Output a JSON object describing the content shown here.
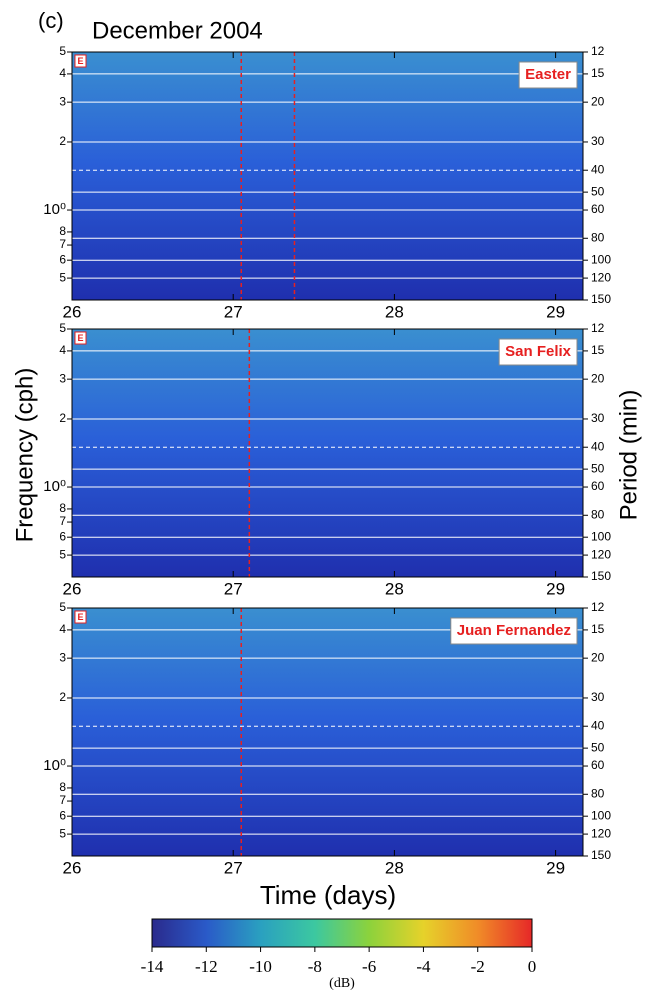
{
  "figure": {
    "label": "(c)",
    "title": "December 2004",
    "y_label": "Frequency  (cph)",
    "y2_label": "Period  (min)",
    "x_label": "Time  (days)"
  },
  "chart_data": [
    {
      "type": "spectrogram",
      "station": "Easter",
      "marker": "E",
      "log_scale": true,
      "xlim": [
        26,
        29.17
      ],
      "xticks": [
        26,
        27,
        28,
        29
      ],
      "ylim": [
        0.4,
        5
      ],
      "yticks": [
        5,
        4,
        3,
        2,
        {
          "value": 1,
          "label": "10⁰"
        },
        {
          "value": 0.8,
          "label": "8"
        },
        {
          "value": 0.7,
          "label": "7"
        },
        {
          "value": 0.6,
          "label": "6"
        },
        {
          "value": 0.5,
          "label": "5"
        }
      ],
      "y2lim": [
        150,
        12
      ],
      "y2ticks": [
        12,
        15,
        20,
        30,
        40,
        50,
        60,
        80,
        100,
        120,
        150
      ],
      "event_lines": [
        27.05,
        27.38
      ],
      "grid": true
    },
    {
      "type": "spectrogram",
      "station": "San Felix",
      "marker": "E",
      "log_scale": true,
      "xlim": [
        26,
        29.17
      ],
      "xticks": [
        26,
        27,
        28,
        29
      ],
      "ylim": [
        0.4,
        5
      ],
      "yticks": [
        5,
        4,
        3,
        2,
        {
          "value": 1,
          "label": "10⁰"
        },
        {
          "value": 0.8,
          "label": "8"
        },
        {
          "value": 0.7,
          "label": "7"
        },
        {
          "value": 0.6,
          "label": "6"
        },
        {
          "value": 0.5,
          "label": "5"
        }
      ],
      "y2lim": [
        150,
        12
      ],
      "y2ticks": [
        12,
        15,
        20,
        30,
        40,
        50,
        60,
        80,
        100,
        120,
        150
      ],
      "event_lines": [
        27.1
      ],
      "grid": true
    },
    {
      "type": "spectrogram",
      "station": "Juan Fernandez",
      "marker": "E",
      "log_scale": true,
      "xlim": [
        26,
        29.17
      ],
      "xticks": [
        26,
        27,
        28,
        29
      ],
      "ylim": [
        0.4,
        5
      ],
      "yticks": [
        5,
        4,
        3,
        2,
        {
          "value": 1,
          "label": "10⁰"
        },
        {
          "value": 0.8,
          "label": "8"
        },
        {
          "value": 0.7,
          "label": "7"
        },
        {
          "value": 0.6,
          "label": "6"
        },
        {
          "value": 0.5,
          "label": "5"
        }
      ],
      "y2lim": [
        150,
        12
      ],
      "y2ticks": [
        12,
        15,
        20,
        30,
        40,
        50,
        60,
        80,
        100,
        120,
        150
      ],
      "event_lines": [
        27.05
      ],
      "grid": true
    },
    {
      "type": "colorbar",
      "label": "(dB)",
      "clim": [
        -14,
        0
      ],
      "ticks": [
        -14,
        -12,
        -10,
        -8,
        -6,
        -4,
        -2,
        0
      ],
      "colors": [
        "#2a2a8c",
        "#2a5ac8",
        "#2aa0c0",
        "#3cc8a0",
        "#8cd23c",
        "#e6d22a",
        "#f08c28",
        "#e62828"
      ]
    }
  ]
}
